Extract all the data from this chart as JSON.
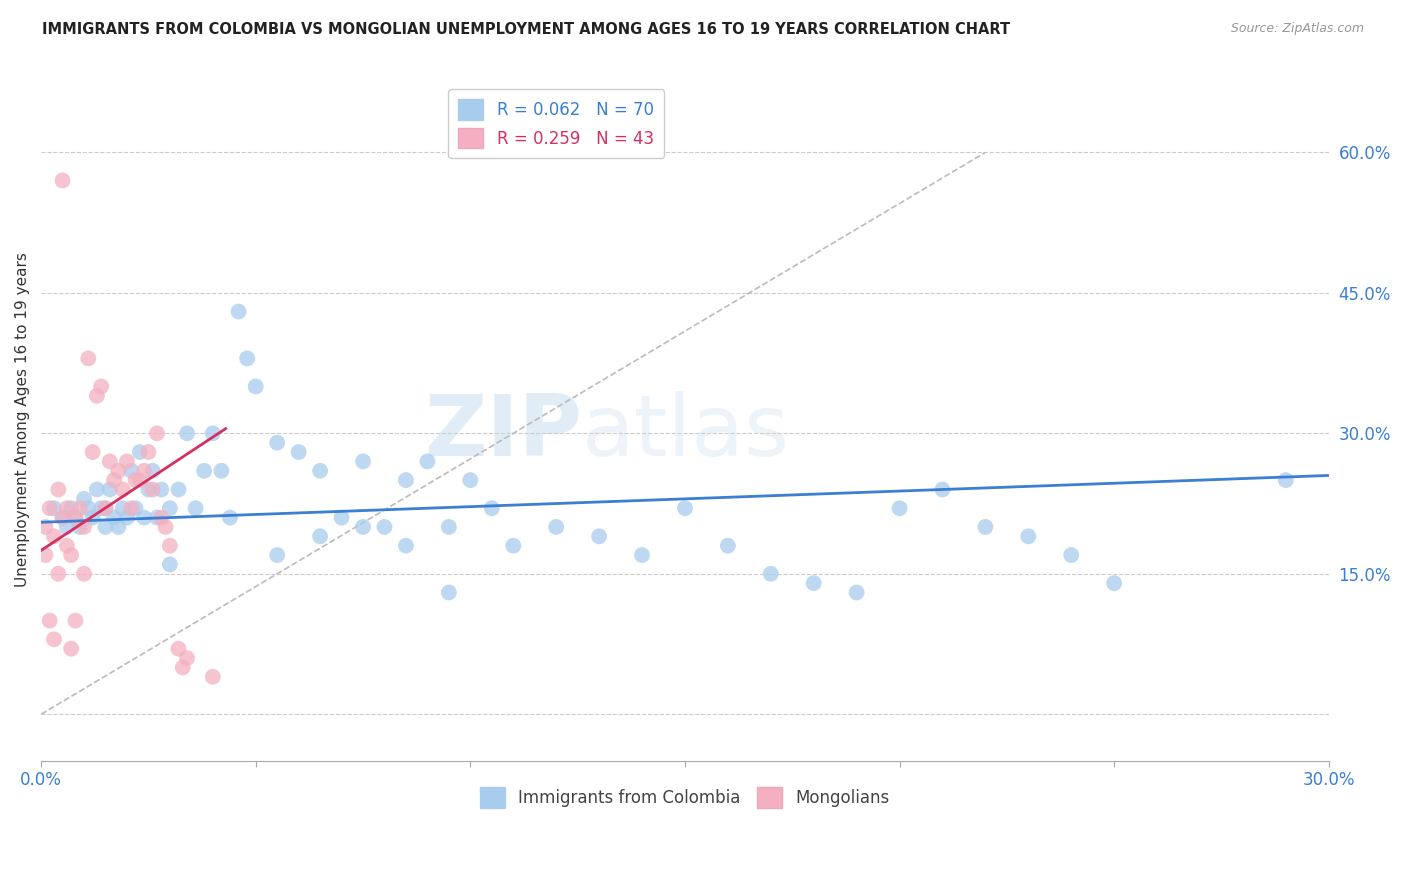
{
  "title": "IMMIGRANTS FROM COLOMBIA VS MONGOLIAN UNEMPLOYMENT AMONG AGES 16 TO 19 YEARS CORRELATION CHART",
  "source": "Source: ZipAtlas.com",
  "ylabel": "Unemployment Among Ages 16 to 19 years",
  "xlim": [
    0,
    0.3
  ],
  "ylim": [
    -0.05,
    0.68
  ],
  "xticks": [
    0.0,
    0.05,
    0.1,
    0.15,
    0.2,
    0.25,
    0.3
  ],
  "xticklabels": [
    "0.0%",
    "",
    "",
    "",
    "",
    "",
    "30.0%"
  ],
  "yticks_right": [
    0.0,
    0.15,
    0.3,
    0.45,
    0.6
  ],
  "ytick_right_labels": [
    "",
    "15.0%",
    "30.0%",
    "45.0%",
    "60.0%"
  ],
  "blue_color": "#a8ccee",
  "pink_color": "#f4b0c0",
  "blue_line_color": "#3a7fd4",
  "pink_line_color": "#d43060",
  "legend_blue_r": "R = 0.062",
  "legend_blue_n": "N = 70",
  "legend_pink_r": "R = 0.259",
  "legend_pink_n": "N = 43",
  "watermark_zip": "ZIP",
  "watermark_atlas": "atlas",
  "blue_scatter_x": [
    0.003,
    0.005,
    0.006,
    0.007,
    0.008,
    0.009,
    0.01,
    0.011,
    0.012,
    0.013,
    0.014,
    0.015,
    0.015,
    0.016,
    0.017,
    0.018,
    0.019,
    0.02,
    0.021,
    0.022,
    0.023,
    0.024,
    0.025,
    0.026,
    0.027,
    0.028,
    0.03,
    0.032,
    0.034,
    0.036,
    0.038,
    0.04,
    0.042,
    0.044,
    0.046,
    0.048,
    0.05,
    0.055,
    0.06,
    0.065,
    0.07,
    0.075,
    0.08,
    0.085,
    0.09,
    0.095,
    0.1,
    0.105,
    0.11,
    0.12,
    0.13,
    0.14,
    0.15,
    0.16,
    0.17,
    0.18,
    0.19,
    0.2,
    0.21,
    0.22,
    0.23,
    0.24,
    0.25,
    0.03,
    0.055,
    0.065,
    0.075,
    0.085,
    0.29,
    0.095
  ],
  "blue_scatter_y": [
    0.22,
    0.21,
    0.2,
    0.22,
    0.21,
    0.2,
    0.23,
    0.22,
    0.21,
    0.24,
    0.22,
    0.2,
    0.22,
    0.24,
    0.21,
    0.2,
    0.22,
    0.21,
    0.26,
    0.22,
    0.28,
    0.21,
    0.24,
    0.26,
    0.21,
    0.24,
    0.22,
    0.24,
    0.3,
    0.22,
    0.26,
    0.3,
    0.26,
    0.21,
    0.43,
    0.38,
    0.35,
    0.29,
    0.28,
    0.26,
    0.21,
    0.27,
    0.2,
    0.25,
    0.27,
    0.2,
    0.25,
    0.22,
    0.18,
    0.2,
    0.19,
    0.17,
    0.22,
    0.18,
    0.15,
    0.14,
    0.13,
    0.22,
    0.24,
    0.2,
    0.19,
    0.17,
    0.14,
    0.16,
    0.17,
    0.19,
    0.2,
    0.18,
    0.25,
    0.13
  ],
  "pink_scatter_x": [
    0.001,
    0.001,
    0.002,
    0.002,
    0.003,
    0.003,
    0.004,
    0.004,
    0.005,
    0.005,
    0.006,
    0.006,
    0.007,
    0.007,
    0.008,
    0.008,
    0.009,
    0.01,
    0.01,
    0.011,
    0.012,
    0.013,
    0.014,
    0.015,
    0.016,
    0.017,
    0.018,
    0.019,
    0.02,
    0.021,
    0.022,
    0.023,
    0.024,
    0.025,
    0.026,
    0.027,
    0.028,
    0.029,
    0.03,
    0.032,
    0.033,
    0.034,
    0.04
  ],
  "pink_scatter_y": [
    0.2,
    0.17,
    0.22,
    0.1,
    0.19,
    0.08,
    0.24,
    0.15,
    0.21,
    0.57,
    0.18,
    0.22,
    0.17,
    0.07,
    0.21,
    0.1,
    0.22,
    0.2,
    0.15,
    0.38,
    0.28,
    0.34,
    0.35,
    0.22,
    0.27,
    0.25,
    0.26,
    0.24,
    0.27,
    0.22,
    0.25,
    0.25,
    0.26,
    0.28,
    0.24,
    0.3,
    0.21,
    0.2,
    0.18,
    0.07,
    0.05,
    0.06,
    0.04
  ],
  "blue_trend_x": [
    0.0,
    0.3
  ],
  "blue_trend_y": [
    0.205,
    0.255
  ],
  "pink_trend_x": [
    0.0,
    0.043
  ],
  "pink_trend_y": [
    0.175,
    0.305
  ],
  "dash_line_x": [
    0.0,
    0.22
  ],
  "dash_line_y": [
    0.0,
    0.6
  ]
}
